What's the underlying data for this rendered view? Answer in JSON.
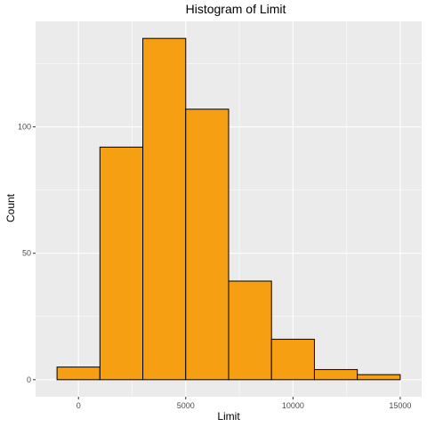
{
  "chart_data": {
    "type": "bar",
    "title": "Histogram of Limit",
    "xlabel": "Limit",
    "ylabel": "Count",
    "bins": [
      {
        "x0": -1000,
        "x1": 1000,
        "count": 5
      },
      {
        "x0": 1000,
        "x1": 3000,
        "count": 92
      },
      {
        "x0": 3000,
        "x1": 5000,
        "count": 135
      },
      {
        "x0": 5000,
        "x1": 7000,
        "count": 107
      },
      {
        "x0": 7000,
        "x1": 9000,
        "count": 39
      },
      {
        "x0": 9000,
        "x1": 11000,
        "count": 16
      },
      {
        "x0": 11000,
        "x1": 13000,
        "count": 4
      },
      {
        "x0": 13000,
        "x1": 15000,
        "count": 2
      }
    ],
    "xlim": [
      -2000,
      16000
    ],
    "ylim": [
      -6.75,
      141.75
    ],
    "x_ticks": [
      0,
      5000,
      10000,
      15000
    ],
    "x_tick_labels": [
      "0",
      "5000",
      "10000",
      "15000"
    ],
    "y_ticks": [
      0,
      50,
      100
    ],
    "y_tick_labels": [
      "0",
      "50",
      "100"
    ],
    "grid": true,
    "colors": {
      "bar_fill": "#F69F12",
      "bar_stroke": "#000000",
      "panel": "#EBEBEB",
      "grid": "#FFFFFF"
    }
  }
}
